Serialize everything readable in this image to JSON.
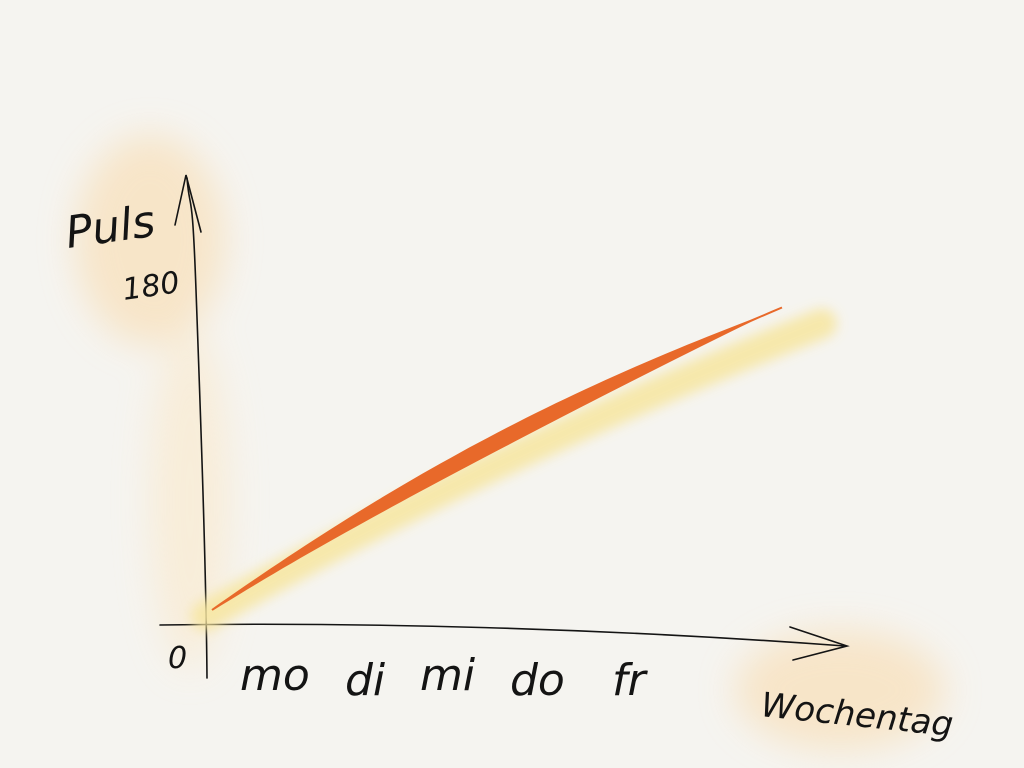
{
  "chart_data": {
    "type": "line",
    "title": "",
    "ylabel": "Puls",
    "xlabel": "Wochentag",
    "categories": [
      "mo",
      "di",
      "mi",
      "do",
      "fr"
    ],
    "y_tick_labels": [
      "0",
      "180"
    ],
    "ylim": [
      0,
      180
    ],
    "x": [
      0,
      5.5
    ],
    "values": [
      0,
      165
    ],
    "grid": false,
    "legend": "none"
  },
  "colors": {
    "line": "#e8692a",
    "highlight": "#f7e6a0",
    "glow": "#f9d9a8",
    "ink": "#141414",
    "paper": "#f5f4f0"
  }
}
